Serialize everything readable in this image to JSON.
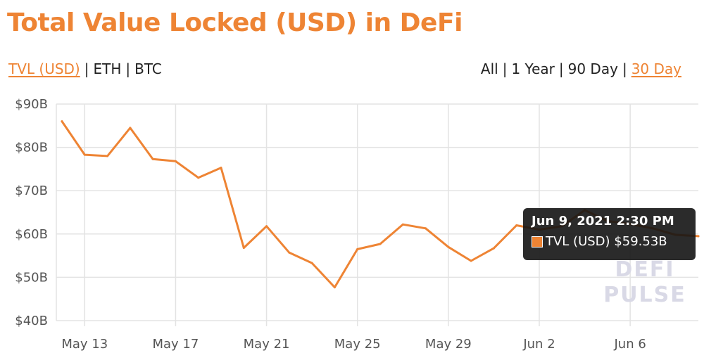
{
  "page": {
    "title": "Total Value Locked (USD) in DeFi",
    "metric_options": [
      "TVL (USD)",
      "ETH",
      "BTC"
    ],
    "metric_active": "TVL (USD)",
    "range_options": [
      "All",
      "1 Year",
      "90 Day",
      "30 Day"
    ],
    "range_active": "30 Day",
    "watermark_lines": [
      "DEFI",
      "PULSE"
    ]
  },
  "tooltip": {
    "date": "Jun 9, 2021 2:30 PM",
    "series_label": "TVL (USD)",
    "value": "$59.53B",
    "swatch_color": "#ee8434"
  },
  "chart_data": {
    "type": "line",
    "x_unit": "days, 2021-05-12 to 2021-06-09",
    "xlim": [
      "2021-05-12",
      "2021-06-09"
    ],
    "x_ticks": [
      {
        "date": "2021-05-13",
        "label": "May 13"
      },
      {
        "date": "2021-05-17",
        "label": "May 17"
      },
      {
        "date": "2021-05-21",
        "label": "May 21"
      },
      {
        "date": "2021-05-25",
        "label": "May 25"
      },
      {
        "date": "2021-05-29",
        "label": "May 29"
      },
      {
        "date": "2021-06-02",
        "label": "Jun 2"
      },
      {
        "date": "2021-06-06",
        "label": "Jun 6"
      }
    ],
    "y_ticks": [
      {
        "value": 40,
        "label": "$40B"
      },
      {
        "value": 50,
        "label": "$50B"
      },
      {
        "value": 60,
        "label": "$60B"
      },
      {
        "value": 70,
        "label": "$70B"
      },
      {
        "value": 80,
        "label": "$80B"
      },
      {
        "value": 90,
        "label": "$90B"
      }
    ],
    "ylim": [
      40,
      90
    ],
    "grid": true,
    "line_color": "#ee8434",
    "series": [
      {
        "name": "TVL (USD)",
        "points": [
          {
            "x": "2021-05-12",
            "y": 86.0
          },
          {
            "x": "2021-05-13",
            "y": 78.3
          },
          {
            "x": "2021-05-14",
            "y": 78.0
          },
          {
            "x": "2021-05-15",
            "y": 84.5
          },
          {
            "x": "2021-05-16",
            "y": 77.3
          },
          {
            "x": "2021-05-17",
            "y": 76.8
          },
          {
            "x": "2021-05-18",
            "y": 73.0
          },
          {
            "x": "2021-05-19",
            "y": 75.3
          },
          {
            "x": "2021-05-20",
            "y": 56.8
          },
          {
            "x": "2021-05-21",
            "y": 61.8
          },
          {
            "x": "2021-05-22",
            "y": 55.7
          },
          {
            "x": "2021-05-23",
            "y": 53.3
          },
          {
            "x": "2021-05-24",
            "y": 47.7
          },
          {
            "x": "2021-05-25",
            "y": 56.5
          },
          {
            "x": "2021-05-26",
            "y": 57.7
          },
          {
            "x": "2021-05-27",
            "y": 62.2
          },
          {
            "x": "2021-05-28",
            "y": 61.3
          },
          {
            "x": "2021-05-29",
            "y": 57.0
          },
          {
            "x": "2021-05-30",
            "y": 53.8
          },
          {
            "x": "2021-05-31",
            "y": 56.7
          },
          {
            "x": "2021-06-01",
            "y": 62.0
          },
          {
            "x": "2021-06-02",
            "y": 61.0
          },
          {
            "x": "2021-06-03",
            "y": 61.8
          },
          {
            "x": "2021-06-04",
            "y": 65.5
          },
          {
            "x": "2021-06-05",
            "y": 63.0
          },
          {
            "x": "2021-06-06",
            "y": 62.3
          },
          {
            "x": "2021-06-07",
            "y": 61.3
          },
          {
            "x": "2021-06-08",
            "y": 59.8
          },
          {
            "x": "2021-06-09",
            "y": 59.5
          }
        ]
      }
    ]
  }
}
